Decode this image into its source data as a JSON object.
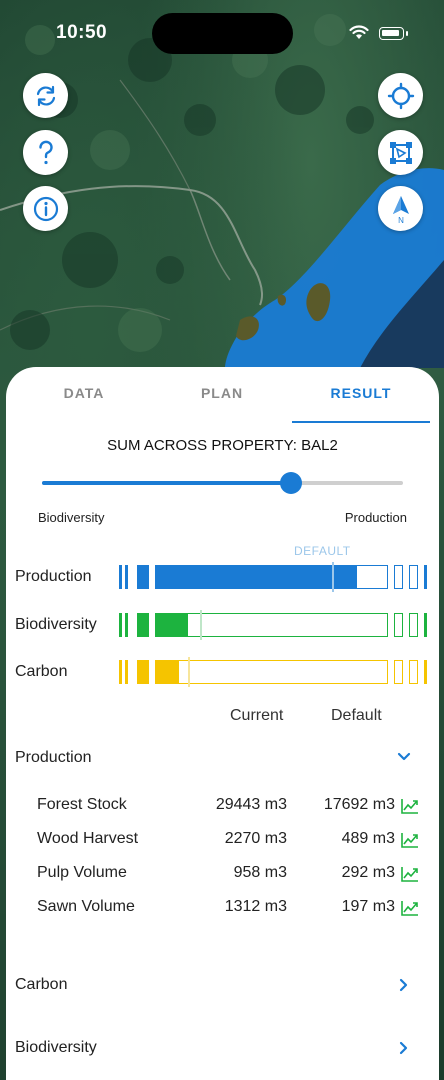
{
  "status_bar": {
    "time": "10:50"
  },
  "map_controls": {
    "refresh_icon": "refresh-icon",
    "help_icon": "help-icon",
    "info_icon": "info-icon",
    "locate_icon": "crosshair-icon",
    "draw_icon": "polygon-draw-icon",
    "compass_icon": "compass-north-icon",
    "compass_label": "N"
  },
  "tabs": [
    {
      "label": "DATA",
      "active": false
    },
    {
      "label": "PLAN",
      "active": false
    },
    {
      "label": "RESULT",
      "active": true
    }
  ],
  "result": {
    "title": "SUM ACROSS PROPERTY: BAL2",
    "slider": {
      "left_label": "Biodiversity",
      "right_label": "Production",
      "value_fraction": 0.69
    },
    "default_marker_label": "DEFAULT",
    "bars": [
      {
        "label": "Production",
        "color": "#1a7bd4",
        "fill_fraction": 0.87,
        "default_fraction": 0.76
      },
      {
        "label": "Biodiversity",
        "color": "#1db33f",
        "fill_fraction": 0.14,
        "default_fraction": 0.19
      },
      {
        "label": "Carbon",
        "color": "#f5c400",
        "fill_fraction": 0.1,
        "default_fraction": 0.14
      }
    ],
    "columns": {
      "current": "Current",
      "default": "Default"
    },
    "sections": [
      {
        "title": "Production",
        "expanded": true,
        "metrics": [
          {
            "name": "Forest Stock",
            "current": "29443 m3",
            "default": "17692 m3"
          },
          {
            "name": "Wood Harvest",
            "current": "2270 m3",
            "default": "489 m3"
          },
          {
            "name": "Pulp Volume",
            "current": "958 m3",
            "default": "292 m3"
          },
          {
            "name": "Sawn Volume",
            "current": "1312 m3",
            "default": "197 m3"
          }
        ]
      },
      {
        "title": "Carbon",
        "expanded": false
      },
      {
        "title": "Biodiversity",
        "expanded": false
      }
    ]
  }
}
